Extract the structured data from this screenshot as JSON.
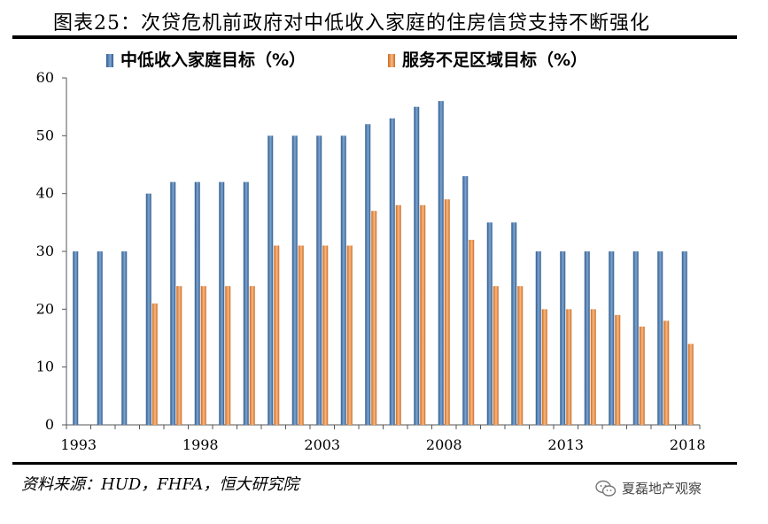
{
  "title": "图表25：次贷危机前政府对中低收入家庭的住房信贷支持不断强化",
  "source": "资料来源：HUD，FHFA，恒大研究院",
  "watermark": {
    "text": "夏磊地产观察",
    "icon": "wechat-icon"
  },
  "colors": {
    "series1": "#4F81BD",
    "series2": "#F79646"
  },
  "chart_data": {
    "type": "bar",
    "categories": [
      "1993",
      "1994",
      "1995",
      "1996",
      "1997",
      "1998",
      "1999",
      "2000",
      "2001",
      "2002",
      "2003",
      "2004",
      "2005",
      "2006",
      "2007",
      "2008",
      "2009",
      "2010",
      "2011",
      "2012",
      "2013",
      "2014",
      "2015",
      "2016",
      "2017",
      "2018"
    ],
    "tick_labels": [
      "1993",
      "1998",
      "2003",
      "2008",
      "2013",
      "2018"
    ],
    "series": [
      {
        "name": "中低收入家庭目标（%）",
        "values": [
          30,
          30,
          30,
          40,
          42,
          42,
          42,
          42,
          50,
          50,
          50,
          50,
          52,
          53,
          55,
          56,
          43,
          35,
          35,
          30,
          30,
          30,
          30,
          30,
          30,
          30
        ]
      },
      {
        "name": "服务不足区域目标（%）",
        "values": [
          null,
          null,
          null,
          21,
          24,
          24,
          24,
          24,
          31,
          31,
          31,
          31,
          37,
          38,
          38,
          39,
          32,
          24,
          24,
          20,
          20,
          20,
          19,
          17,
          18,
          14
        ]
      }
    ],
    "ylim": [
      0,
      60
    ],
    "yticks": [
      "0",
      "10",
      "20",
      "30",
      "40",
      "50",
      "60"
    ],
    "legend": "top",
    "grid": false,
    "title": "",
    "xlabel": "",
    "ylabel": ""
  }
}
